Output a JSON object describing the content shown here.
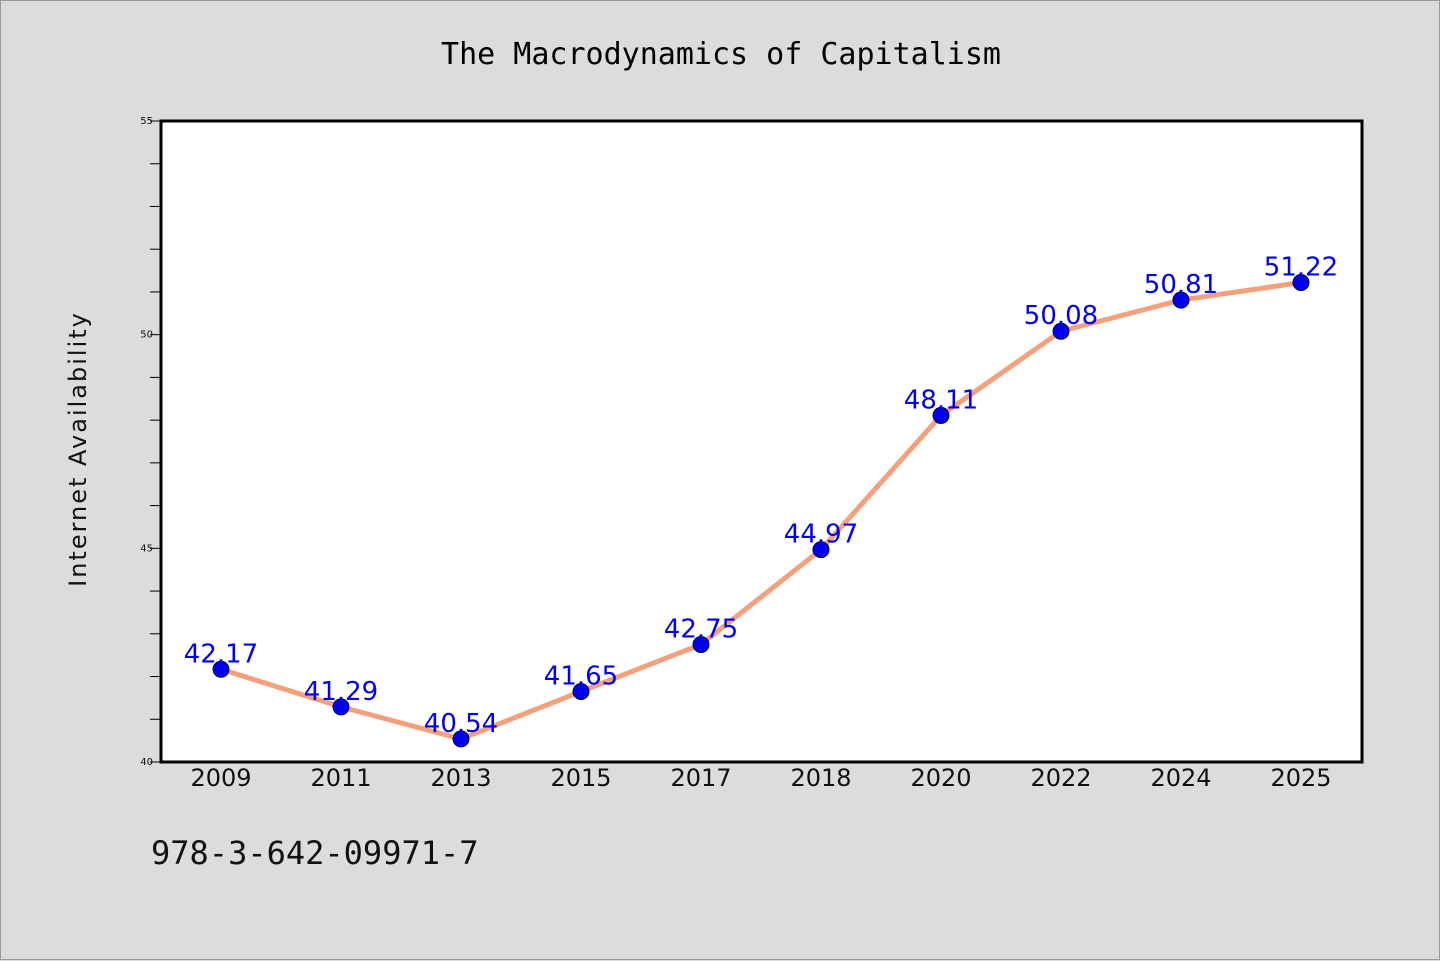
{
  "chart_data": {
    "type": "line",
    "title": "The Macrodynamics of Capitalism",
    "xlabel": "",
    "ylabel": "Internet Availability",
    "categories": [
      "2009",
      "2011",
      "2013",
      "2015",
      "2017",
      "2018",
      "2020",
      "2022",
      "2024",
      "2025"
    ],
    "series": [
      {
        "values": [
          42.17,
          41.29,
          40.54,
          41.65,
          42.75,
          44.97,
          48.11,
          50.08,
          50.81,
          51.22
        ],
        "data_labels": [
          "42.17",
          "41.29",
          "40.54",
          "41.65",
          "42.75",
          "44.97",
          "48.11",
          "50.08",
          "50.81",
          "51.22"
        ],
        "line_color": "#f4a07c",
        "marker_color": "#0000ee",
        "label_color": "#0000ee"
      }
    ],
    "ylim": [
      40,
      55
    ],
    "yticks": [
      "40",
      "45",
      "50",
      "55"
    ],
    "grid": false,
    "legend": "none"
  },
  "caption": "978-3-642-09971-7",
  "colors": {
    "background": "#dcdcdc",
    "plot_background": "#ffffff",
    "axis": "#000000"
  }
}
